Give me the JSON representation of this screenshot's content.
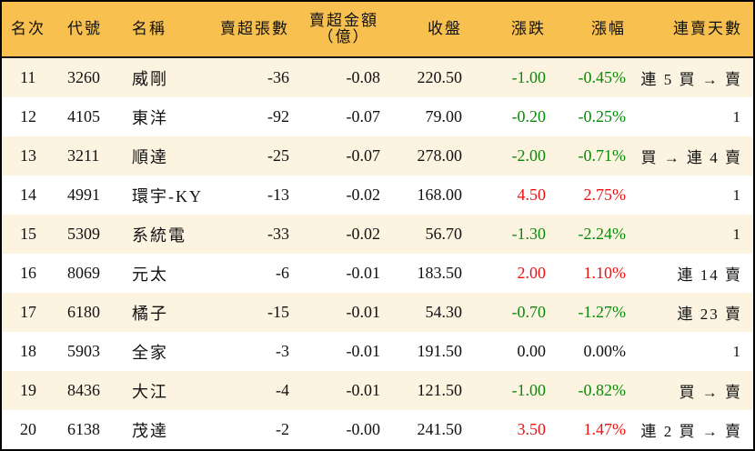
{
  "table": {
    "columns": {
      "rank": "名次",
      "code": "代號",
      "name": "名稱",
      "sell_lots": "賣超張數",
      "sell_amount_line1": "賣超金額",
      "sell_amount_line2": "（億）",
      "close": "收盤",
      "change": "漲跌",
      "change_pct": "漲幅",
      "streak": "連賣天數"
    },
    "colors": {
      "header_bg": "#F8C04E",
      "row_alt_bg": "#FDF3E1",
      "up": "#EE1111",
      "down": "#0A8A0A",
      "border": "#000000"
    },
    "rows": [
      {
        "rank": "11",
        "code": "3260",
        "name": "威剛",
        "sell_lots": "-36",
        "sell_amount": "-0.08",
        "close": "220.50",
        "change": "-1.00",
        "change_pct": "-0.45%",
        "direction": "down",
        "streak": "連 5 買 → 賣"
      },
      {
        "rank": "12",
        "code": "4105",
        "name": "東洋",
        "sell_lots": "-92",
        "sell_amount": "-0.07",
        "close": "79.00",
        "change": "-0.20",
        "change_pct": "-0.25%",
        "direction": "down",
        "streak": "1"
      },
      {
        "rank": "13",
        "code": "3211",
        "name": "順達",
        "sell_lots": "-25",
        "sell_amount": "-0.07",
        "close": "278.00",
        "change": "-2.00",
        "change_pct": "-0.71%",
        "direction": "down",
        "streak": "買 → 連 4 賣"
      },
      {
        "rank": "14",
        "code": "4991",
        "name": "環宇-KY",
        "sell_lots": "-13",
        "sell_amount": "-0.02",
        "close": "168.00",
        "change": "4.50",
        "change_pct": "2.75%",
        "direction": "up",
        "streak": "1"
      },
      {
        "rank": "15",
        "code": "5309",
        "name": "系統電",
        "sell_lots": "-33",
        "sell_amount": "-0.02",
        "close": "56.70",
        "change": "-1.30",
        "change_pct": "-2.24%",
        "direction": "down",
        "streak": "1"
      },
      {
        "rank": "16",
        "code": "8069",
        "name": "元太",
        "sell_lots": "-6",
        "sell_amount": "-0.01",
        "close": "183.50",
        "change": "2.00",
        "change_pct": "1.10%",
        "direction": "up",
        "streak": "連 14 賣"
      },
      {
        "rank": "17",
        "code": "6180",
        "name": "橘子",
        "sell_lots": "-15",
        "sell_amount": "-0.01",
        "close": "54.30",
        "change": "-0.70",
        "change_pct": "-1.27%",
        "direction": "down",
        "streak": "連 23 賣"
      },
      {
        "rank": "18",
        "code": "5903",
        "name": "全家",
        "sell_lots": "-3",
        "sell_amount": "-0.01",
        "close": "191.50",
        "change": "0.00",
        "change_pct": "0.00%",
        "direction": "flat",
        "streak": "1"
      },
      {
        "rank": "19",
        "code": "8436",
        "name": "大江",
        "sell_lots": "-4",
        "sell_amount": "-0.01",
        "close": "121.50",
        "change": "-1.00",
        "change_pct": "-0.82%",
        "direction": "down",
        "streak": "買 → 賣"
      },
      {
        "rank": "20",
        "code": "6138",
        "name": "茂達",
        "sell_lots": "-2",
        "sell_amount": "-0.00",
        "close": "241.50",
        "change": "3.50",
        "change_pct": "1.47%",
        "direction": "up",
        "streak": "連 2 買 → 賣"
      }
    ]
  }
}
